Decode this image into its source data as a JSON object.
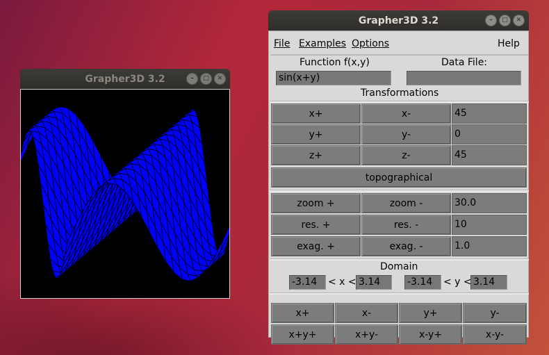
{
  "desktop": {
    "background_color": "#b3283a"
  },
  "graph_window": {
    "title": "Grapher3D 3.2",
    "state": "inactive",
    "surface_color": "#0000ff",
    "mesh_color": "#000000"
  },
  "main_window": {
    "title": "Grapher3D 3.2",
    "menu": {
      "file": "File",
      "examples": "Examples",
      "options": "Options",
      "help": "Help"
    },
    "function_label": "Function f(x,y)",
    "function_value": "sin(x+y)",
    "datafile_label": "Data File:",
    "datafile_value": "",
    "transformations_label": "Transformations",
    "rotation": {
      "x_plus": "x+",
      "x_minus": "x-",
      "x_value": "45",
      "y_plus": "y+",
      "y_minus": "y-",
      "y_value": "0",
      "z_plus": "z+",
      "z_minus": "z-",
      "z_value": "45",
      "topographical": "topographical"
    },
    "view": {
      "zoom_plus": "zoom +",
      "zoom_minus": "zoom -",
      "zoom_value": "30.0",
      "res_plus": "res. +",
      "res_minus": "res. -",
      "res_value": "10",
      "exag_plus": "exag. +",
      "exag_minus": "exag. -",
      "exag_value": "1.0"
    },
    "domain": {
      "label": "Domain",
      "x_min": "-3.14",
      "x_sep": "< x <",
      "x_max": "3.14",
      "y_min": "-3.14",
      "y_sep": "< y <",
      "y_max": "3.14"
    },
    "pan": {
      "x_plus": "x+",
      "x_minus": "x-",
      "y_plus": "y+",
      "y_minus": "y-",
      "xp_yp": "x+y+",
      "xp_ym": "x+y-",
      "xm_yp": "x-y+",
      "xm_ym": "x-y-"
    }
  }
}
